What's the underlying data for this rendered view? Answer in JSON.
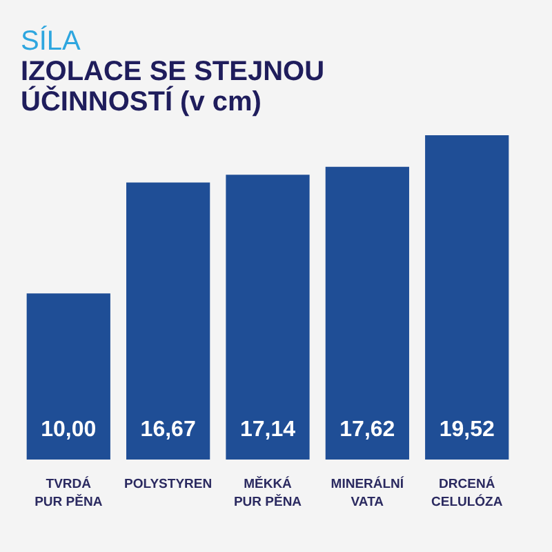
{
  "chart_data": {
    "type": "bar",
    "title": "SÍLA",
    "subtitle": "IZOLACE SE STEJNOU ÚČINNOSTÍ (v cm)",
    "categories": [
      "TVRDÁ PUR PĚNA",
      "POLYSTYREN",
      "MĚKKÁ PUR PĚNA",
      "MINERÁLNÍ VATA",
      "DRCENÁ CELULÓZA"
    ],
    "values": [
      10,
      16.67,
      17.14,
      17.62,
      19.52
    ],
    "value_labels": [
      "10,00",
      "16,67",
      "17,14",
      "17,62",
      "19,52"
    ],
    "color": "#1f4e96"
  }
}
